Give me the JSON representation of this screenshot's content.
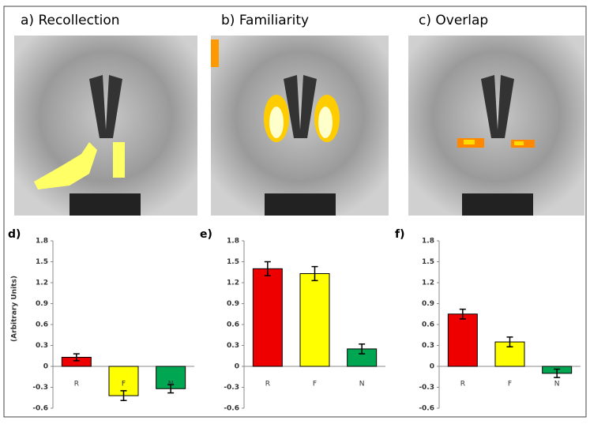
{
  "panels": [
    "a)  Recollection",
    "b)   Familiarity",
    "c)     Overlap"
  ],
  "chart_data": [
    {
      "type": "bar",
      "title": "d)",
      "ylabel": "(Arbitrary Units)",
      "categories": [
        "R",
        "F",
        "N"
      ],
      "values": [
        0.13,
        -0.42,
        -0.32
      ],
      "errors": [
        0.05,
        0.07,
        0.06
      ],
      "colors": [
        "#ee0000",
        "#ffff00",
        "#00a651"
      ],
      "ylim": [
        -0.6,
        1.8
      ],
      "yticks": [
        1.8,
        1.5,
        1.2,
        0.9,
        0.6,
        0.3,
        0,
        -0.3,
        -0.6
      ]
    },
    {
      "type": "bar",
      "title": "e)",
      "categories": [
        "R",
        "F",
        "N"
      ],
      "values": [
        1.4,
        1.33,
        0.25
      ],
      "errors": [
        0.1,
        0.1,
        0.07
      ],
      "colors": [
        "#ee0000",
        "#ffff00",
        "#00a651"
      ],
      "ylim": [
        -0.6,
        1.8
      ],
      "yticks": [
        1.8,
        1.5,
        1.2,
        0.9,
        0.6,
        0.3,
        0,
        -0.3,
        -0.6
      ]
    },
    {
      "type": "bar",
      "title": "f)",
      "categories": [
        "R",
        "F",
        "N"
      ],
      "values": [
        0.75,
        0.35,
        -0.1
      ],
      "errors": [
        0.07,
        0.07,
        0.06
      ],
      "colors": [
        "#ee0000",
        "#ffff00",
        "#00a651"
      ],
      "ylim": [
        -0.6,
        1.8
      ],
      "yticks": [
        1.8,
        1.5,
        1.2,
        0.9,
        0.6,
        0.3,
        0,
        -0.3,
        -0.6
      ]
    }
  ]
}
